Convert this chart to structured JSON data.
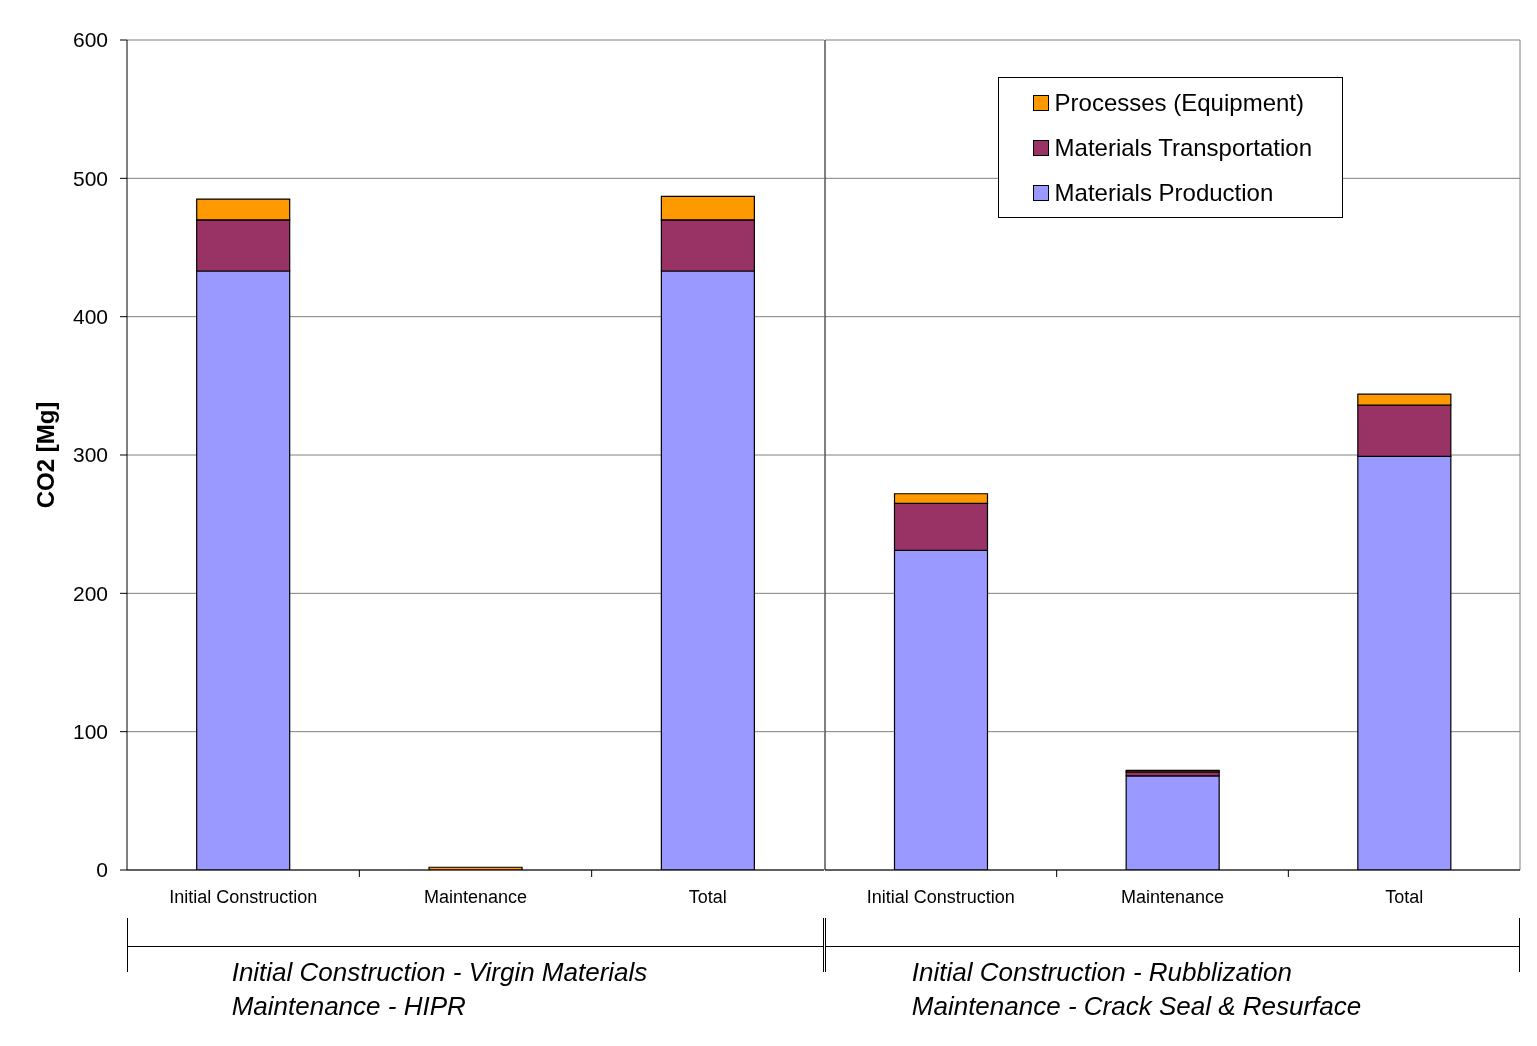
{
  "chart_data": [
    {
      "type": "bar",
      "stacked": true,
      "categories": [
        "Initial Construction",
        "Maintenance",
        "Total"
      ],
      "xlabel": "Initial Construction - Virgin Materials\nMaintenance - HIPR",
      "ylabel": "CO2 [Mg]",
      "series": [
        {
          "color": "#9999ff",
          "values": [
            433,
            0,
            433
          ]
        },
        {
          "color": "#993366",
          "values": [
            37,
            0,
            37
          ]
        },
        {
          "color": "#ff9900",
          "values": [
            15,
            2,
            17
          ]
        }
      ],
      "ylim": [
        0,
        600
      ],
      "yticks": [
        0,
        100,
        200,
        300,
        400,
        500,
        600
      ],
      "grid": "y"
    },
    {
      "type": "bar",
      "stacked": true,
      "categories": [
        "Initial Construction",
        "Maintenance",
        "Total"
      ],
      "xlabel": "Initial Construction - Rubblization\nMaintenance - Crack Seal & Resurface",
      "series": [
        {
          "name": "Materials Production",
          "color": "#9999ff",
          "values": [
            231,
            68,
            299
          ]
        },
        {
          "name": "Materials Transportation",
          "color": "#993366",
          "values": [
            34,
            3,
            37
          ]
        },
        {
          "name": "Processes (Equipment)",
          "color": "#ff9900",
          "values": [
            7,
            1,
            8
          ]
        }
      ],
      "ylim": [
        0,
        600
      ],
      "yticks": [
        0,
        100,
        200,
        300,
        400,
        500,
        600
      ],
      "grid": "y",
      "legend": "top right",
      "tick_labels": "x"
    }
  ]
}
